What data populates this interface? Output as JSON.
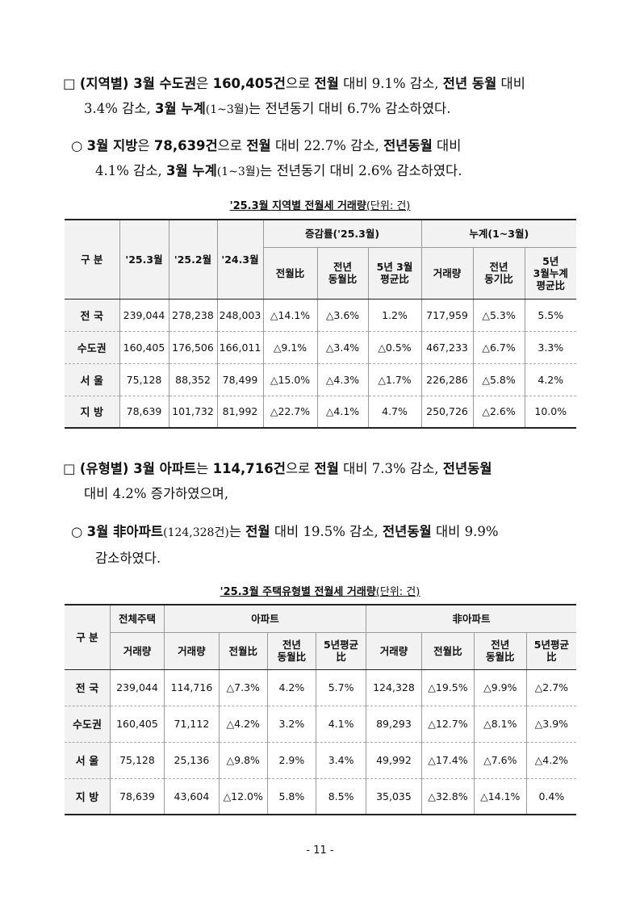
{
  "para1": {
    "line1_parts": [
      {
        "t": "□ ",
        "b": false
      },
      {
        "t": "(지역별) 3월 수도권",
        "b": true
      },
      {
        "t": "은 ",
        "b": false
      },
      {
        "t": "160,405건",
        "b": true
      },
      {
        "t": "으로 ",
        "b": false
      },
      {
        "t": "전월",
        "b": true
      },
      {
        "t": " 대비 9.1% 감소, ",
        "b": false
      },
      {
        "t": "전년 동월",
        "b": true
      },
      {
        "t": " 대비",
        "b": false
      }
    ],
    "line2_parts": [
      {
        "t": "3.4% 감소, ",
        "b": false
      },
      {
        "t": "3월 누계",
        "b": true
      },
      {
        "t": "(1~3월)",
        "b": false,
        "sm": true
      },
      {
        "t": "는 전년동기 대비 6.7% 감소하였다.",
        "b": false
      }
    ]
  },
  "para2": {
    "line1_parts": [
      {
        "t": "○ ",
        "b": false
      },
      {
        "t": "3월 지방",
        "b": true
      },
      {
        "t": "은 ",
        "b": false
      },
      {
        "t": "78,639건",
        "b": true
      },
      {
        "t": "으로 ",
        "b": false
      },
      {
        "t": "전월",
        "b": true
      },
      {
        "t": " 대비 22.7% 감소, ",
        "b": false
      },
      {
        "t": "전년동월",
        "b": true
      },
      {
        "t": " 대비",
        "b": false
      }
    ],
    "line2_parts": [
      {
        "t": "4.1% 감소, ",
        "b": false
      },
      {
        "t": "3월 누계",
        "b": true
      },
      {
        "t": "(1~3월)",
        "b": false,
        "sm": true
      },
      {
        "t": "는 전년동기 대비 2.6% 감소하였다.",
        "b": false
      }
    ]
  },
  "table1": {
    "caption": "'25.3월 지역별 전월세 거래량",
    "unit": "(단위: 건)",
    "h_gubun": "구 분",
    "h_cols": [
      "'25.3월",
      "'25.2월",
      "'24.3월"
    ],
    "h_group1": "증감률('25.3월)",
    "h_group2": "누계(1~3월)",
    "h_sub1": [
      "전월比",
      "전년\n동월比",
      "5년 3월\n평균比"
    ],
    "h_sub2": [
      "거래량",
      "전년\n동기比",
      "5년\n3월누계\n평균比"
    ],
    "rows": [
      {
        "label": "전 국",
        "cells": [
          "239,044",
          "278,238",
          "248,003",
          "△14.1%",
          "△3.6%",
          "1.2%",
          "717,959",
          "△5.3%",
          "5.5%"
        ]
      },
      {
        "label": "수도권",
        "cells": [
          "160,405",
          "176,506",
          "166,011",
          "△9.1%",
          "△3.4%",
          "△0.5%",
          "467,233",
          "△6.7%",
          "3.3%"
        ]
      },
      {
        "label": "서 울",
        "cells": [
          "75,128",
          "88,352",
          "78,499",
          "△15.0%",
          "△4.3%",
          "△1.7%",
          "226,286",
          "△5.8%",
          "4.2%"
        ]
      },
      {
        "label": "지 방",
        "cells": [
          "78,639",
          "101,732",
          "81,992",
          "△22.7%",
          "△4.1%",
          "4.7%",
          "250,726",
          "△2.6%",
          "10.0%"
        ]
      }
    ]
  },
  "para3": {
    "line1_parts": [
      {
        "t": "□ ",
        "b": false
      },
      {
        "t": "(유형별) 3월 아파트",
        "b": true
      },
      {
        "t": "는 ",
        "b": false
      },
      {
        "t": "114,716건",
        "b": true
      },
      {
        "t": "으로 ",
        "b": false
      },
      {
        "t": "전월",
        "b": true
      },
      {
        "t": " 대비 7.3% 감소, ",
        "b": false
      },
      {
        "t": "전년동월",
        "b": true
      }
    ],
    "line2_parts": [
      {
        "t": "대비 4.2% 증가하였으며,",
        "b": false
      }
    ]
  },
  "para4": {
    "line1_parts": [
      {
        "t": "○ ",
        "b": false
      },
      {
        "t": "3월 非아파트",
        "b": true
      },
      {
        "t": "(124,328건)",
        "b": false,
        "sm": true
      },
      {
        "t": "는 ",
        "b": false
      },
      {
        "t": "전월",
        "b": true
      },
      {
        "t": " 대비 19.5% 감소, ",
        "b": false
      },
      {
        "t": "전년동월",
        "b": true
      },
      {
        "t": " 대비 9.9%",
        "b": false
      }
    ],
    "line2_parts": [
      {
        "t": "감소하였다.",
        "b": false
      }
    ]
  },
  "table2": {
    "caption": "'25.3월 주택유형별 전월세 거래량",
    "unit": "(단위: 건)",
    "h_gubun": "구 분",
    "h_total": "전체주택",
    "h_apt": "아파트",
    "h_nonapt": "非아파트",
    "h_sub": [
      "거래량",
      "거래량",
      "전월比",
      "전년\n동월比",
      "5년평균\n比",
      "거래량",
      "전월比",
      "전년\n동월比",
      "5년평균\n比"
    ],
    "rows": [
      {
        "label": "전 국",
        "cells": [
          "239,044",
          "114,716",
          "△7.3%",
          "4.2%",
          "5.7%",
          "124,328",
          "△19.5%",
          "△9.9%",
          "△2.7%"
        ]
      },
      {
        "label": "수도권",
        "cells": [
          "160,405",
          "71,112",
          "△4.2%",
          "3.2%",
          "4.1%",
          "89,293",
          "△12.7%",
          "△8.1%",
          "△3.9%"
        ]
      },
      {
        "label": "서 울",
        "cells": [
          "75,128",
          "25,136",
          "△9.8%",
          "2.9%",
          "3.4%",
          "49,992",
          "△17.4%",
          "△7.6%",
          "△4.2%"
        ]
      },
      {
        "label": "지 방",
        "cells": [
          "78,639",
          "43,604",
          "△12.0%",
          "5.8%",
          "8.5%",
          "35,035",
          "△32.8%",
          "△14.1%",
          "0.4%"
        ]
      }
    ]
  },
  "page_number": "- 11 -"
}
